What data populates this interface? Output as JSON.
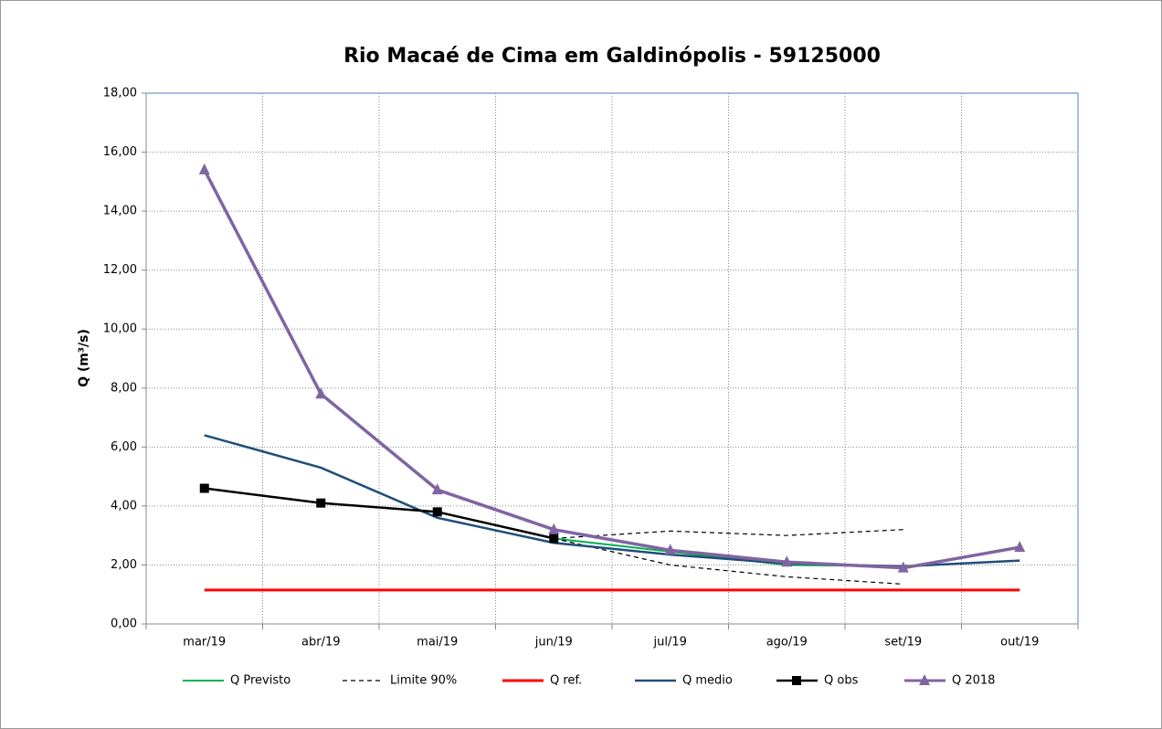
{
  "chart_data": {
    "type": "line",
    "title": "Rio Macaé de Cima em Galdinópolis - 59125000",
    "y_label": "Q (m³/s)",
    "categories": [
      "mar/19",
      "abr/19",
      "mai/19",
      "jun/19",
      "jul/19",
      "ago/19",
      "set/19",
      "out/19"
    ],
    "ylim": [
      0,
      18
    ],
    "yticks": [
      {
        "value": 0,
        "label": "0,00"
      },
      {
        "value": 2,
        "label": "2,00"
      },
      {
        "value": 4,
        "label": "4,00"
      },
      {
        "value": 6,
        "label": "6,00"
      },
      {
        "value": 8,
        "label": "8,00"
      },
      {
        "value": 10,
        "label": "10,00"
      },
      {
        "value": 12,
        "label": "12,00"
      },
      {
        "value": 14,
        "label": "14,00"
      },
      {
        "value": 16,
        "label": "16,00"
      },
      {
        "value": 18,
        "label": "18,00"
      }
    ],
    "grid": true,
    "legend": "bottom",
    "series": [
      {
        "name": "Q Previsto",
        "color": "#00b050",
        "dash": false,
        "marker": null,
        "width": 2,
        "values": [
          null,
          null,
          null,
          2.9,
          2.45,
          2.0,
          1.95,
          null
        ]
      },
      {
        "name": "Limite 90%",
        "color": "#000000",
        "dash": true,
        "marker": null,
        "width": 1.2,
        "values": [
          null,
          null,
          null,
          2.9,
          3.15,
          3.0,
          3.2,
          null
        ],
        "lower_values": [
          null,
          null,
          null,
          2.9,
          2.0,
          1.6,
          1.35,
          null
        ]
      },
      {
        "name": "Q ref.",
        "color": "#ff0000",
        "dash": false,
        "marker": null,
        "width": 3,
        "values": [
          1.15,
          1.15,
          1.15,
          1.15,
          1.15,
          1.15,
          1.15,
          1.15
        ]
      },
      {
        "name": "Q medio",
        "color": "#1f4e79",
        "dash": false,
        "marker": null,
        "width": 2.5,
        "values": [
          6.4,
          5.3,
          3.6,
          2.75,
          2.35,
          2.05,
          1.95,
          2.15
        ]
      },
      {
        "name": "Q obs",
        "color": "#000000",
        "dash": false,
        "marker": "square",
        "width": 2.5,
        "values": [
          4.6,
          4.1,
          3.8,
          2.9,
          null,
          null,
          null,
          null
        ]
      },
      {
        "name": "Q 2018",
        "color": "#8064a2",
        "dash": false,
        "marker": "triangle",
        "width": 3.5,
        "values": [
          15.4,
          7.8,
          4.55,
          3.2,
          2.5,
          2.1,
          1.9,
          2.6
        ]
      }
    ]
  }
}
